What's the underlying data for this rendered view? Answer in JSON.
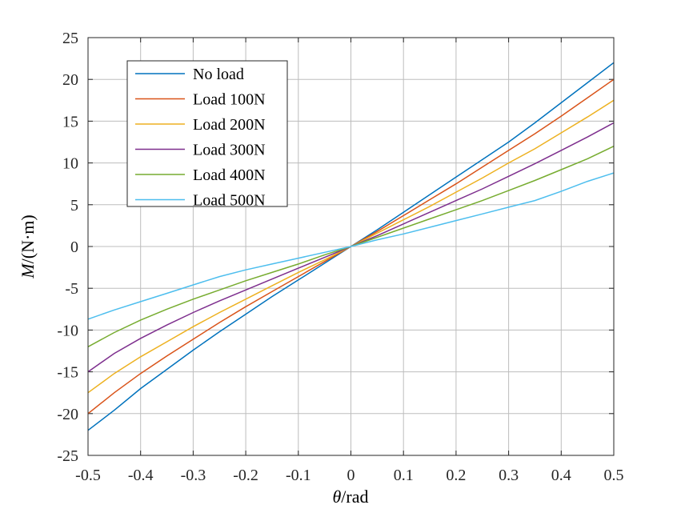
{
  "chart_data": {
    "type": "line",
    "xlabel_symbol": "θ",
    "xlabel_unit": "/rad",
    "ylabel_symbol": "M",
    "ylabel_unit": "/(N·m)",
    "xlim": [
      -0.5,
      0.5
    ],
    "ylim": [
      -25,
      25
    ],
    "x_ticks": [
      -0.5,
      -0.4,
      -0.3,
      -0.2,
      -0.1,
      0,
      0.1,
      0.2,
      0.3,
      0.4,
      0.5
    ],
    "y_ticks": [
      -25,
      -20,
      -15,
      -10,
      -5,
      0,
      5,
      10,
      15,
      20,
      25
    ],
    "grid": true,
    "legend_position": "top-left",
    "x": [
      -0.5,
      -0.45,
      -0.4,
      -0.35,
      -0.3,
      -0.25,
      -0.2,
      -0.15,
      -0.1,
      -0.05,
      0,
      0.05,
      0.1,
      0.15,
      0.2,
      0.25,
      0.3,
      0.35,
      0.4,
      0.45,
      0.5
    ],
    "series": [
      {
        "name": "No load",
        "color": "#0072BD",
        "values": [
          -22.0,
          -19.6,
          -17.0,
          -14.7,
          -12.4,
          -10.2,
          -8.1,
          -6.0,
          -4.0,
          -2.0,
          0,
          2.0,
          4.1,
          6.2,
          8.3,
          10.4,
          12.5,
          14.8,
          17.2,
          19.6,
          22.0
        ]
      },
      {
        "name": "Load 100N",
        "color": "#D95319",
        "values": [
          -20.0,
          -17.5,
          -15.2,
          -13.1,
          -11.1,
          -9.1,
          -7.2,
          -5.4,
          -3.6,
          -1.8,
          0,
          1.8,
          3.7,
          5.6,
          7.5,
          9.5,
          11.5,
          13.5,
          15.6,
          17.8,
          20.0
        ]
      },
      {
        "name": "Load 200N",
        "color": "#EDB120",
        "values": [
          -17.5,
          -15.2,
          -13.2,
          -11.4,
          -9.6,
          -7.9,
          -6.3,
          -4.7,
          -3.1,
          -1.6,
          0,
          1.6,
          3.2,
          4.8,
          6.5,
          8.2,
          10.0,
          11.7,
          13.6,
          15.5,
          17.5
        ]
      },
      {
        "name": "Load 300N",
        "color": "#7E2F8E",
        "values": [
          -15.0,
          -12.8,
          -11.0,
          -9.4,
          -7.9,
          -6.5,
          -5.2,
          -3.9,
          -2.6,
          -1.3,
          0,
          1.3,
          2.7,
          4.1,
          5.5,
          6.9,
          8.4,
          9.9,
          11.5,
          13.1,
          14.8
        ]
      },
      {
        "name": "Load 400N",
        "color": "#77AC30",
        "values": [
          -12.0,
          -10.3,
          -8.8,
          -7.5,
          -6.3,
          -5.2,
          -4.1,
          -3.1,
          -2.1,
          -1.0,
          0,
          1.1,
          2.2,
          3.3,
          4.4,
          5.5,
          6.7,
          7.9,
          9.2,
          10.5,
          12.0
        ]
      },
      {
        "name": "Load 500N",
        "color": "#4DBEEE",
        "values": [
          -8.7,
          -7.6,
          -6.6,
          -5.6,
          -4.6,
          -3.6,
          -2.8,
          -2.1,
          -1.4,
          -0.7,
          0,
          0.8,
          1.5,
          2.3,
          3.1,
          3.9,
          4.7,
          5.5,
          6.6,
          7.8,
          8.8
        ]
      }
    ]
  }
}
